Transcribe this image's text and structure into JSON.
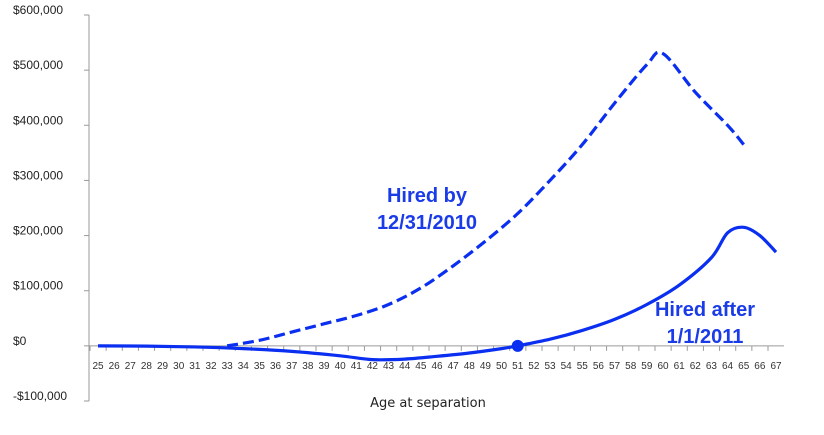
{
  "chart_data": {
    "type": "line",
    "title": "",
    "xlabel": "Age at separation",
    "ylabel": "",
    "xlim": [
      25,
      67
    ],
    "ylim": [
      -100000,
      600000
    ],
    "y_ticks": [
      600000,
      500000,
      400000,
      300000,
      200000,
      100000,
      0,
      -100000
    ],
    "y_tick_labels": [
      "$600,000",
      "$500,000",
      "$400,000",
      "$300,000",
      "$200,000",
      "$100,000",
      "$0",
      "-$100,000"
    ],
    "x_ticks": [
      25,
      26,
      27,
      28,
      29,
      30,
      31,
      32,
      33,
      34,
      35,
      36,
      37,
      38,
      39,
      40,
      41,
      42,
      43,
      44,
      45,
      46,
      47,
      48,
      49,
      50,
      51,
      52,
      53,
      54,
      55,
      56,
      57,
      58,
      59,
      60,
      61,
      62,
      63,
      64,
      65,
      66,
      67
    ],
    "grid": false,
    "series": [
      {
        "name": "Hired by 12/31/2010",
        "line_style": "dashed",
        "x": [
          33,
          35,
          37,
          39,
          41,
          43,
          45,
          47,
          49,
          51,
          53,
          55,
          57,
          59,
          60,
          62,
          64,
          65
        ],
        "values": [
          0,
          10000,
          25000,
          40000,
          55000,
          75000,
          105000,
          145000,
          190000,
          240000,
          300000,
          365000,
          440000,
          510000,
          530000,
          460000,
          400000,
          365000
        ]
      },
      {
        "name": "Hired after 1/1/2011",
        "line_style": "solid",
        "marker_x": 51,
        "x": [
          25,
          28,
          31,
          34,
          37,
          40,
          42,
          44,
          46,
          48,
          50,
          51,
          53,
          55,
          57,
          59,
          61,
          63,
          64,
          65,
          66,
          67
        ],
        "values": [
          0,
          -500,
          -2000,
          -5000,
          -10000,
          -18000,
          -25000,
          -24000,
          -19000,
          -13000,
          -5000,
          0,
          12000,
          28000,
          48000,
          75000,
          110000,
          160000,
          205000,
          215000,
          200000,
          170000
        ]
      }
    ],
    "annotations": [
      {
        "text_lines": [
          "Hired by",
          "12/31/2010"
        ],
        "color": "#1a3be8"
      },
      {
        "text_lines": [
          "Hired after",
          "1/1/2011"
        ],
        "color": "#1a3be8"
      }
    ],
    "colors": {
      "line": "#0a2ff0",
      "axis": "#9a9a9a"
    }
  }
}
